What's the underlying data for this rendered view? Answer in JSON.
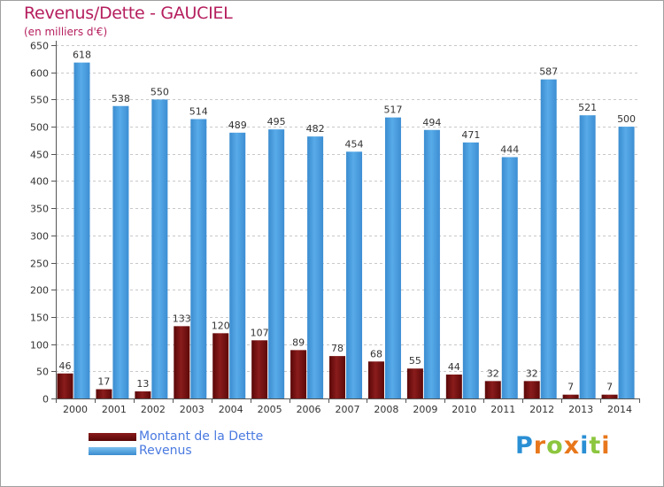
{
  "header": {
    "title": "Revenus/Dette - GAUCIEL",
    "subtitle": "(en milliers d'€)"
  },
  "legend": {
    "items": [
      {
        "label": "Montant de la Dette",
        "color": "#6e0b0b"
      },
      {
        "label": "Revenus",
        "color": "#4ea4e4"
      }
    ]
  },
  "logo": {
    "text": "Proxiti",
    "letters": [
      {
        "ch": "P",
        "color": "#2a8fd4"
      },
      {
        "ch": "r",
        "color": "#e8771b"
      },
      {
        "ch": "o",
        "color": "#8cc63f"
      },
      {
        "ch": "x",
        "color": "#e8771b"
      },
      {
        "ch": "i",
        "color": "#2a8fd4"
      },
      {
        "ch": "t",
        "color": "#8cc63f"
      },
      {
        "ch": "i",
        "color": "#e8771b"
      }
    ]
  },
  "chart_data": {
    "type": "bar",
    "title": "Revenus/Dette - GAUCIEL",
    "ylabel": "(en milliers d'€)",
    "xlabel": "",
    "categories": [
      "2000",
      "2001",
      "2002",
      "2003",
      "2004",
      "2005",
      "2006",
      "2007",
      "2008",
      "2009",
      "2010",
      "2011",
      "2012",
      "2013",
      "2014"
    ],
    "series": [
      {
        "name": "Montant de la Dette",
        "color": "#6e0b0b",
        "values": [
          46,
          17,
          13,
          133,
          120,
          107,
          89,
          78,
          68,
          55,
          44,
          32,
          32,
          7,
          7
        ]
      },
      {
        "name": "Revenus",
        "color": "#4ea4e4",
        "values": [
          618,
          538,
          550,
          514,
          489,
          495,
          482,
          454,
          517,
          494,
          471,
          444,
          587,
          521,
          500
        ]
      }
    ],
    "ylim": [
      0,
      650
    ],
    "yticks": [
      0,
      50,
      100,
      150,
      200,
      250,
      300,
      350,
      400,
      450,
      500,
      550,
      600,
      650
    ],
    "grid": true,
    "legend": "bottom-left"
  }
}
